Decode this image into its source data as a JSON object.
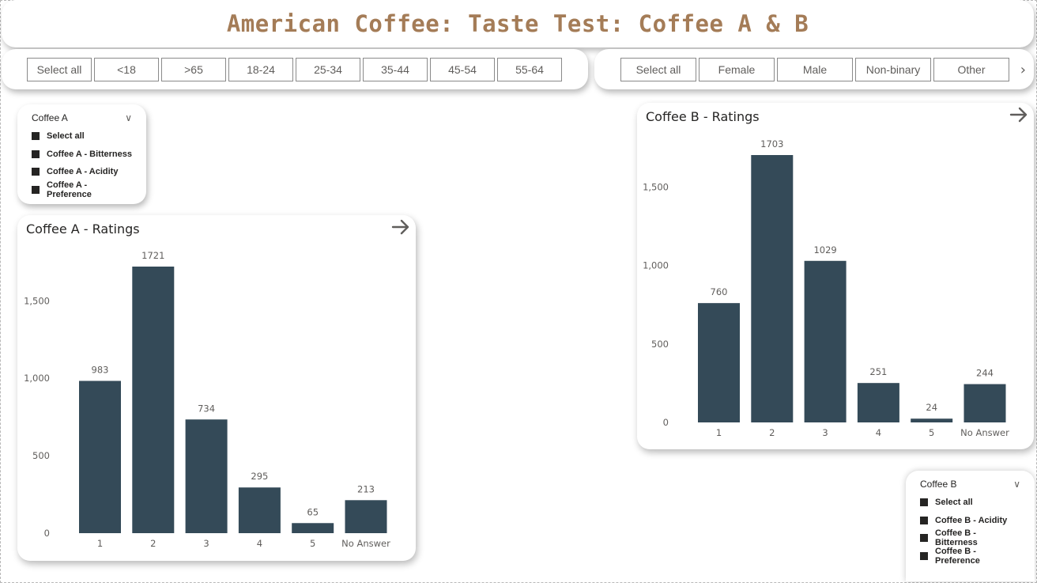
{
  "title": "American Coffee: Taste Test: Coffee A & B",
  "age_slicer": [
    "Select all",
    "<18",
    ">65",
    "18-24",
    "25-34",
    "35-44",
    "45-54",
    "55-64"
  ],
  "gender_slicer": [
    "Select all",
    "Female",
    "Male",
    "Non-binary",
    "Other"
  ],
  "icons": {
    "next": "chevron-right-icon",
    "dropdown": "chevron-down-icon",
    "drill": "arrow-right-icon"
  },
  "colors": {
    "bar": "#344a58",
    "title": "#a47c57"
  },
  "filter_a": {
    "header": "Coffee A",
    "items": [
      "Select all",
      "Coffee A - Bitterness",
      "Coffee A - Acidity",
      "Coffee A - Preference"
    ]
  },
  "filter_b": {
    "header": "Coffee B",
    "items": [
      "Select all",
      "Coffee B - Acidity",
      "Coffee B - Bitterness",
      "Coffee B - Preference"
    ]
  },
  "chart_data": [
    {
      "type": "bar",
      "title": "Coffee A - Ratings",
      "categories": [
        "1",
        "2",
        "3",
        "4",
        "5",
        "No Answer"
      ],
      "values": [
        983,
        1721,
        734,
        295,
        65,
        213
      ],
      "ylim": [
        0,
        1721
      ],
      "yticks": [
        0,
        500,
        1000,
        1500
      ],
      "ytick_labels": [
        "0",
        "500",
        "1,000",
        "1,500"
      ],
      "grid": false,
      "data_labels": true
    },
    {
      "type": "bar",
      "title": "Coffee B - Ratings",
      "categories": [
        "1",
        "2",
        "3",
        "4",
        "5",
        "No Answer"
      ],
      "values": [
        760,
        1703,
        1029,
        251,
        24,
        244
      ],
      "ylim": [
        0,
        1703
      ],
      "yticks": [
        0,
        500,
        1000,
        1500
      ],
      "ytick_labels": [
        "0",
        "500",
        "1,000",
        "1,500"
      ],
      "grid": false,
      "data_labels": true
    }
  ]
}
